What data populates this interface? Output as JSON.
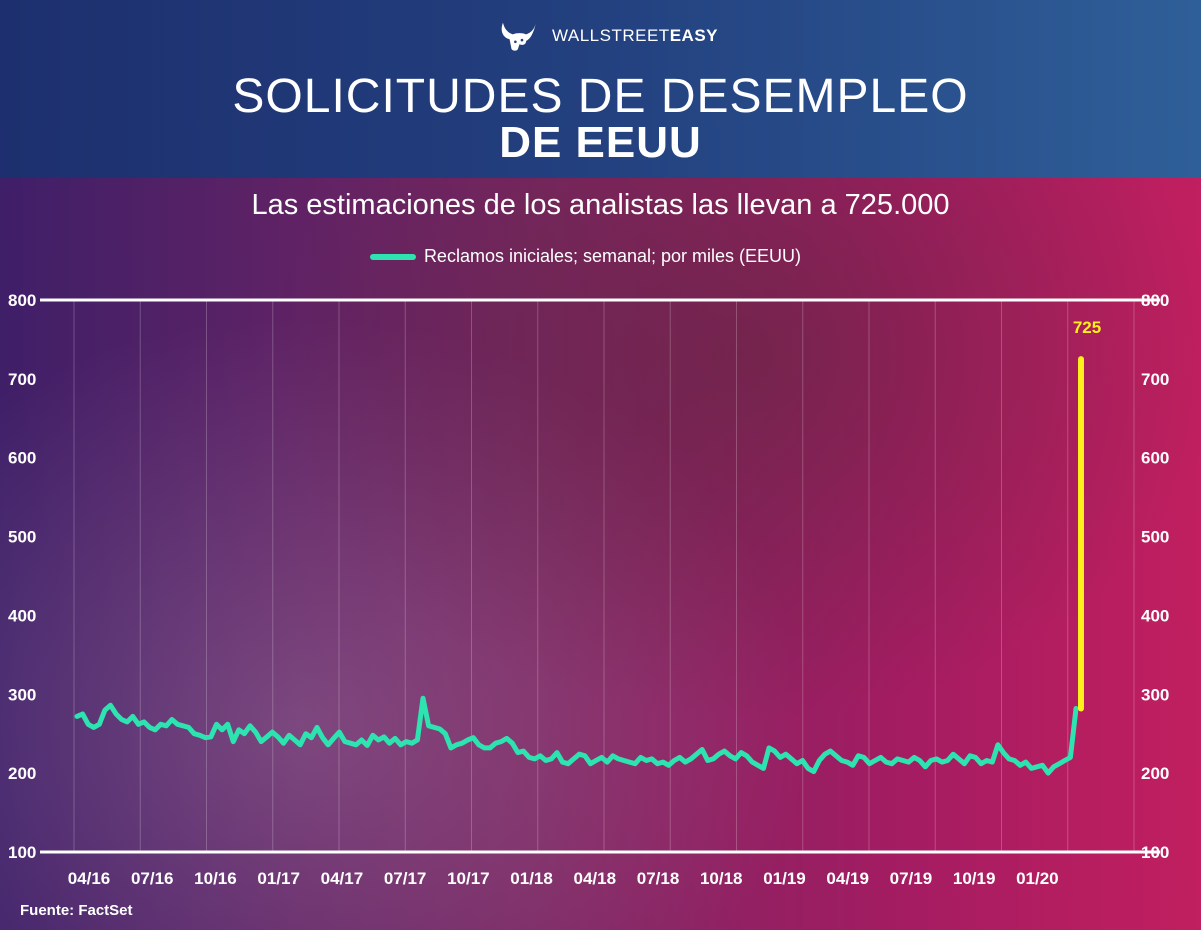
{
  "brand": {
    "name_light": "WALLSTREET",
    "name_bold": "EASY"
  },
  "title_line1": "SOLICITUDES DE DESEMPLEO",
  "title_line2": "DE EEUU",
  "source": "Fuente: FactSet",
  "colors": {
    "series": "#2de3b0",
    "highlight": "#ffef1a",
    "header": "#23407f"
  },
  "chart_data": {
    "type": "line",
    "title": "Las estimaciones de los analistas las llevan a 725.000",
    "series_name": "Reclamos iniciales; semanal; por miles (EEUU)",
    "ylim": [
      100,
      800
    ],
    "yticks": [
      100,
      200,
      300,
      400,
      500,
      600,
      700,
      800
    ],
    "y_axes": "left and right",
    "grid": "vertical",
    "legend_position": "top-center",
    "x_start": "04/16",
    "x_ticks": [
      "04/16",
      "07/16",
      "10/16",
      "01/17",
      "04/17",
      "07/17",
      "10/17",
      "01/18",
      "04/18",
      "07/18",
      "10/18",
      "01/19",
      "04/19",
      "07/19",
      "10/19",
      "01/20"
    ],
    "values": [
      272,
      275,
      262,
      258,
      262,
      280,
      286,
      275,
      268,
      265,
      272,
      262,
      265,
      258,
      255,
      262,
      260,
      268,
      262,
      260,
      258,
      250,
      248,
      245,
      246,
      262,
      255,
      262,
      240,
      255,
      250,
      260,
      252,
      240,
      246,
      252,
      246,
      238,
      248,
      242,
      236,
      250,
      245,
      258,
      245,
      236,
      244,
      252,
      240,
      238,
      236,
      242,
      235,
      248,
      242,
      246,
      238,
      244,
      236,
      240,
      238,
      242,
      295,
      260,
      258,
      256,
      250,
      232,
      236,
      238,
      242,
      245,
      236,
      232,
      232,
      238,
      240,
      244,
      238,
      226,
      228,
      220,
      218,
      222,
      216,
      218,
      226,
      214,
      212,
      218,
      224,
      222,
      212,
      216,
      220,
      214,
      222,
      218,
      216,
      214,
      212,
      220,
      216,
      218,
      212,
      214,
      210,
      216,
      220,
      214,
      218,
      224,
      230,
      216,
      218,
      224,
      228,
      222,
      218,
      226,
      222,
      214,
      210,
      206,
      232,
      228,
      220,
      224,
      218,
      212,
      216,
      206,
      202,
      216,
      224,
      228,
      222,
      216,
      214,
      210,
      222,
      220,
      212,
      216,
      220,
      214,
      212,
      218,
      216,
      214,
      220,
      216,
      208,
      216,
      218,
      214,
      216,
      224,
      218,
      212,
      222,
      220,
      212,
      216,
      214,
      236,
      226,
      218,
      216,
      210,
      214,
      206,
      208,
      210,
      200,
      208,
      212,
      216,
      220,
      282
    ],
    "projection": {
      "from": 282,
      "to": 725,
      "label": "725"
    }
  }
}
